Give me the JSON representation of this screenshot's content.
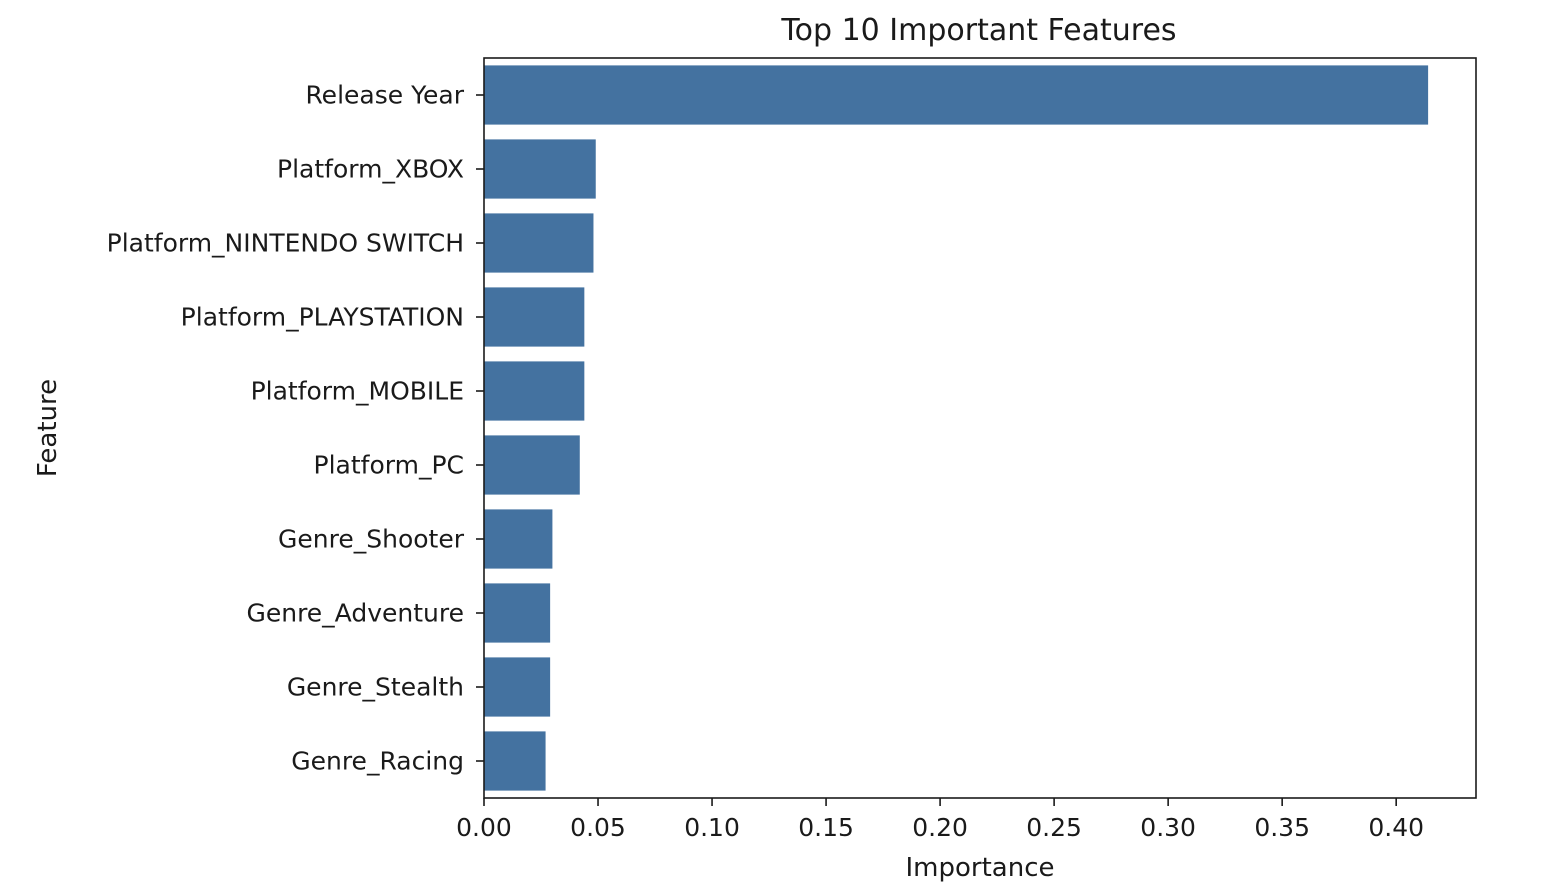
{
  "chart_data": {
    "type": "bar",
    "orientation": "horizontal",
    "title": "Top 10 Important Features",
    "xlabel": "Importance",
    "ylabel": "Feature",
    "categories": [
      "Release Year",
      "Platform_XBOX",
      "Platform_NINTENDO SWITCH",
      "Platform_PLAYSTATION",
      "Platform_MOBILE",
      "Platform_PC",
      "Genre_Shooter",
      "Genre_Adventure",
      "Genre_Stealth",
      "Genre_Racing"
    ],
    "values": [
      0.414,
      0.049,
      0.048,
      0.044,
      0.044,
      0.042,
      0.03,
      0.029,
      0.029,
      0.027
    ],
    "xlim": [
      0,
      0.435
    ],
    "xticks": [
      0.0,
      0.05,
      0.1,
      0.15,
      0.2,
      0.25,
      0.3,
      0.35,
      0.4
    ],
    "xtick_labels": [
      "0.00",
      "0.05",
      "0.10",
      "0.15",
      "0.20",
      "0.25",
      "0.30",
      "0.35",
      "0.40"
    ],
    "bar_color": "#4472a0",
    "grid": false
  }
}
